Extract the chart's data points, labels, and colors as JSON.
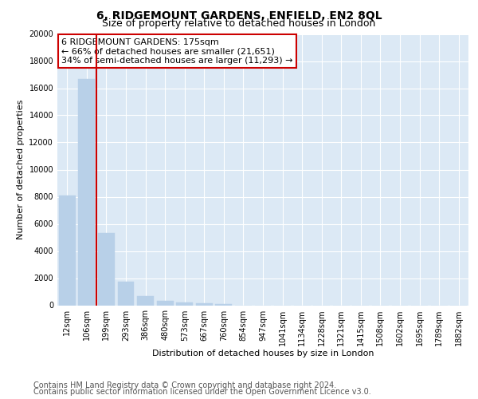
{
  "title": "6, RIDGEMOUNT GARDENS, ENFIELD, EN2 8QL",
  "subtitle": "Size of property relative to detached houses in London",
  "xlabel": "Distribution of detached houses by size in London",
  "ylabel": "Number of detached properties",
  "categories": [
    "12sqm",
    "106sqm",
    "199sqm",
    "293sqm",
    "386sqm",
    "480sqm",
    "573sqm",
    "667sqm",
    "760sqm",
    "854sqm",
    "947sqm",
    "1041sqm",
    "1134sqm",
    "1228sqm",
    "1321sqm",
    "1415sqm",
    "1508sqm",
    "1602sqm",
    "1695sqm",
    "1789sqm",
    "1882sqm"
  ],
  "values": [
    8100,
    16650,
    5300,
    1750,
    700,
    320,
    200,
    130,
    100,
    0,
    0,
    0,
    0,
    0,
    0,
    0,
    0,
    0,
    0,
    0,
    0
  ],
  "bar_color": "#b8d0e8",
  "bar_edge_color": "#b8d0e8",
  "vline_x": 1.5,
  "vline_color": "#cc0000",
  "annotation_line1": "6 RIDGEMOUNT GARDENS: 175sqm",
  "annotation_line2": "← 66% of detached houses are smaller (21,651)",
  "annotation_line3": "34% of semi-detached houses are larger (11,293) →",
  "annotation_box_color": "#ffffff",
  "annotation_box_edge": "#cc0000",
  "ylim": [
    0,
    20000
  ],
  "yticks": [
    0,
    2000,
    4000,
    6000,
    8000,
    10000,
    12000,
    14000,
    16000,
    18000,
    20000
  ],
  "plot_bg_color": "#dce9f5",
  "footer1": "Contains HM Land Registry data © Crown copyright and database right 2024.",
  "footer2": "Contains public sector information licensed under the Open Government Licence v3.0.",
  "title_fontsize": 10,
  "subtitle_fontsize": 9,
  "axis_label_fontsize": 8,
  "tick_fontsize": 7,
  "annotation_fontsize": 8,
  "footer_fontsize": 7
}
